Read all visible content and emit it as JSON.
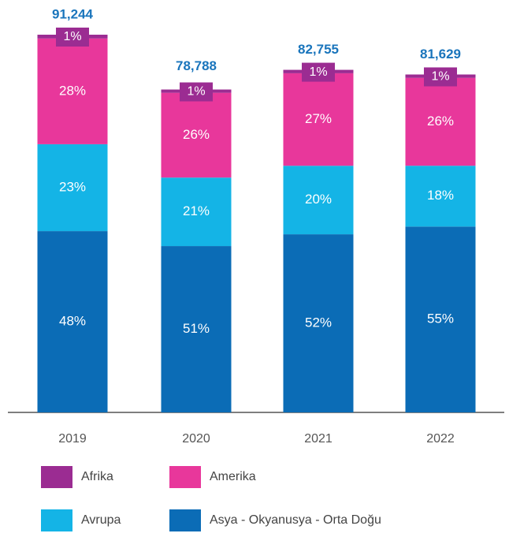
{
  "chart_data": {
    "type": "stacked_bar",
    "categories": [
      "2019",
      "2020",
      "2021",
      "2022"
    ],
    "totals": {
      "values": [
        91244,
        78788,
        82755,
        81629
      ],
      "value_labels": [
        "91,244",
        "78,788",
        "82,755",
        "81,629"
      ],
      "color": "#1a75bc"
    },
    "series": [
      {
        "name": "Afrika",
        "color": "#9b2c92",
        "values": [
          1,
          1,
          1,
          1
        ],
        "value_labels": [
          "1%",
          "1%",
          "1%",
          "1%"
        ]
      },
      {
        "name": "Amerika",
        "color": "#e8379b",
        "values": [
          28,
          26,
          27,
          26
        ],
        "value_labels": [
          "28%",
          "26%",
          "27%",
          "26%"
        ]
      },
      {
        "name": "Avrupa",
        "color": "#14b4e6",
        "values": [
          23,
          21,
          20,
          18
        ],
        "value_labels": [
          "23%",
          "21%",
          "20%",
          "18%"
        ]
      },
      {
        "name": "Asya - Okyanusya - Orta Doğu",
        "color": "#0b6cb6",
        "values": [
          48,
          51,
          52,
          55
        ],
        "value_labels": [
          "48%",
          "51%",
          "52%",
          "55%"
        ]
      }
    ]
  }
}
